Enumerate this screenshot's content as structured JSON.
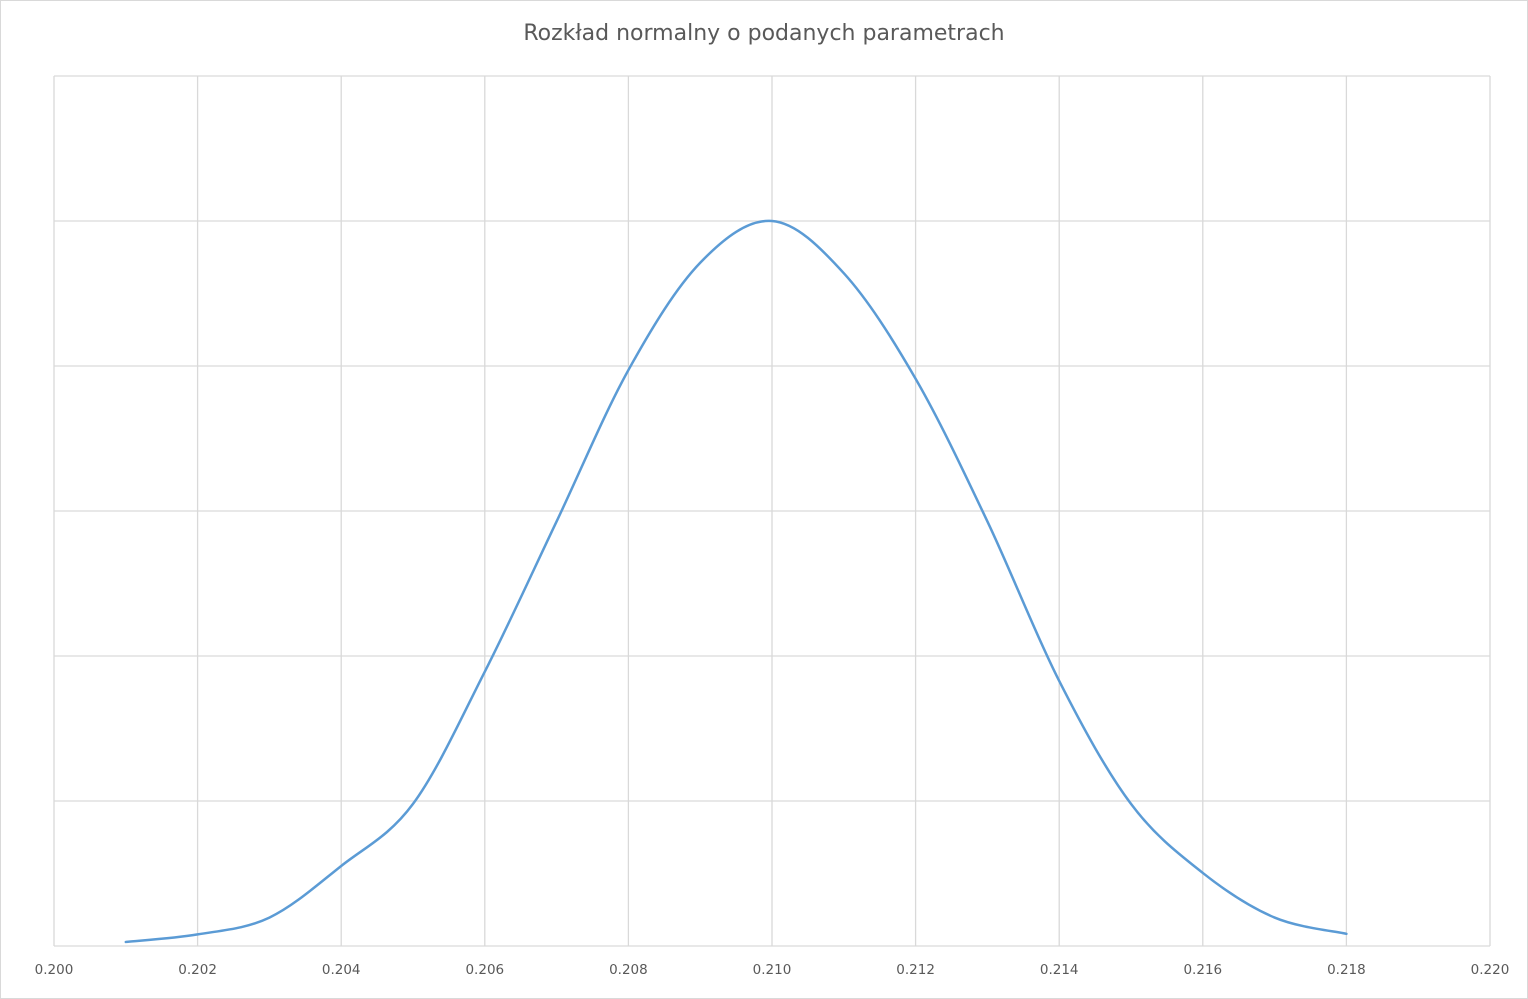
{
  "chart_data": {
    "type": "line",
    "title": "Rozkład normalny o podanych parametrach",
    "xlabel": "",
    "ylabel": "",
    "xlim": [
      0.2,
      0.22
    ],
    "ylim": [
      0,
      150
    ],
    "x_ticks": [
      "0.200",
      "0.202",
      "0.204",
      "0.206",
      "0.208",
      "0.210",
      "0.212",
      "0.214",
      "0.216",
      "0.218",
      "0.220"
    ],
    "y_gridlines": [
      0,
      25,
      50,
      75,
      100,
      125,
      150
    ],
    "y_tick_labels_visible": false,
    "grid": true,
    "legend": "none",
    "line_color": "#5b9bd5",
    "series": [
      {
        "x": [
          0.201,
          0.202,
          0.203,
          0.204,
          0.205,
          0.206,
          0.207,
          0.208,
          0.209,
          0.21,
          0.211,
          0.212,
          0.213,
          0.214,
          0.215,
          0.216,
          0.217,
          0.218
        ],
        "values": [
          0.7,
          2.0,
          4.9,
          13.8,
          24.5,
          47.3,
          73.2,
          99.3,
          117.8,
          125.0,
          116.0,
          97.8,
          73.2,
          45.7,
          24.5,
          12.6,
          4.9,
          2.1
        ]
      }
    ]
  }
}
